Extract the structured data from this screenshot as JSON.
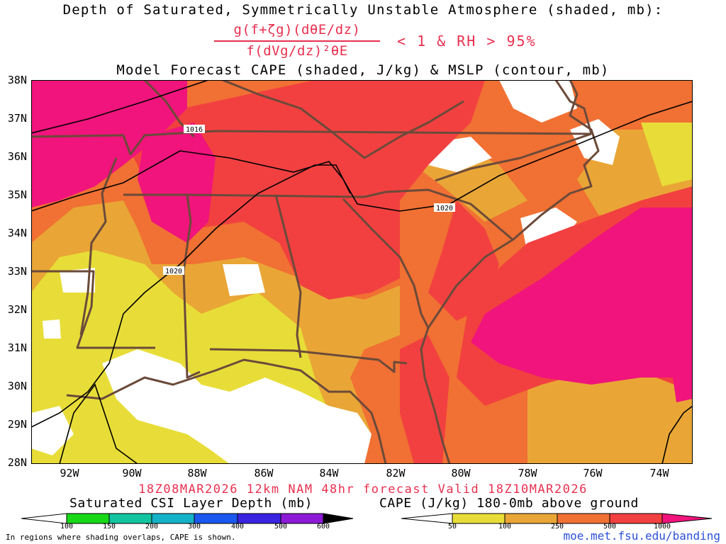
{
  "header": {
    "title": "Depth of Saturated, Symmetrically Unstable Atmosphere (shaded, mb):",
    "fraction_numerator": "g(f+ζg)(dθE/dz)",
    "fraction_denominator": "f(dVg/dz)²θE",
    "condition": "< 1 & RH > 95%",
    "subtitle": "Model Forecast CAPE (shaded, J/kg) & MSLP (contour, mb)"
  },
  "map": {
    "region": "Southeastern United States",
    "lat_labels": [
      "38N",
      "37N",
      "36N",
      "35N",
      "34N",
      "33N",
      "32N",
      "31N",
      "30N",
      "29N",
      "28N"
    ],
    "lon_labels": [
      "92W",
      "90W",
      "88W",
      "86W",
      "84W",
      "82W",
      "80W",
      "78W",
      "76W",
      "74W"
    ],
    "isobar_labels": [
      "1016",
      "1020",
      "1020"
    ],
    "colors": {
      "border": "#6b4a3a",
      "isobar": "#000000",
      "frame": "#000000"
    }
  },
  "footer": {
    "valid": "18Z08MAR2026 12km NAM 48hr forecast Valid 18Z10MAR2026",
    "csi_legend_title": "Saturated CSI Layer Depth (mb)",
    "cape_legend_title": "CAPE (J/kg) 180-0mb above ground",
    "note": "In regions where shading overlaps, CAPE is shown.",
    "credit": "moe.met.fsu.edu/banding"
  },
  "legend_csi": {
    "ticks": [
      "100",
      "150",
      "200",
      "300",
      "400",
      "500",
      "600"
    ],
    "colors": [
      "#ffffff",
      "#18d818",
      "#12c5a0",
      "#14b2c8",
      "#1c58ef",
      "#3a24e0",
      "#8c1ad6",
      "#000000"
    ]
  },
  "legend_cape": {
    "ticks": [
      "50",
      "100",
      "250",
      "500",
      "1000"
    ],
    "colors": [
      "#ffffff",
      "#e8dd38",
      "#e9a636",
      "#f17033",
      "#f24040",
      "#f0147c"
    ]
  }
}
